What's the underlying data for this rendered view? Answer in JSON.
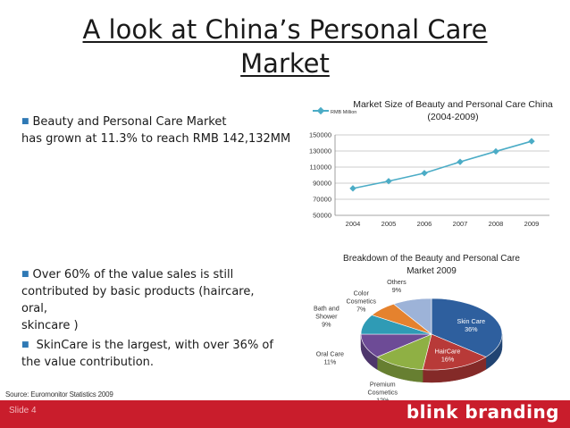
{
  "slide": {
    "title_line1": "A look at China’s Personal Care",
    "title_line2": "Market",
    "bullets": [
      {
        "line1": "Beauty and Personal Care Market",
        "line2": "has grown at 11.3% to reach RMB 142,132MM"
      },
      {
        "line1": "Over 60% of the value sales is still",
        "line2": "contributed by basic products (haircare, oral,",
        "line3": "skincare )"
      },
      {
        "line1": " SkinCare is the largest, with over 36% of",
        "line2": "the value contribution."
      }
    ],
    "source": "Source: Euromonitor Statistics 2009",
    "slide_number": "Slide 4",
    "brand": "blink branding",
    "colors": {
      "accent": "#c91d2c",
      "bullet": "#2f79b5"
    }
  },
  "chart_data": [
    {
      "type": "line",
      "title_line1": "Market Size of Beauty and Personal Care China",
      "title_line2": "(2004-2009)",
      "legend": "top-left",
      "x": [
        "2004",
        "2005",
        "2006",
        "2007",
        "2008",
        "2009"
      ],
      "series": [
        {
          "name": "RMB Million",
          "values": [
            83500,
            92500,
            102500,
            116500,
            129500,
            142132
          ],
          "color": "#4bacc6"
        }
      ],
      "ylim": [
        50000,
        150000
      ],
      "yticks": [
        50000,
        70000,
        90000,
        110000,
        130000,
        150000
      ],
      "ytick_labels": [
        "50000",
        "70000",
        "90000",
        "110000",
        "130000",
        "150000"
      ],
      "grid": true
    },
    {
      "type": "pie",
      "title_line1": "Breakdown of the Beauty and Personal Care",
      "title_line2": "Market 2009",
      "slices": [
        {
          "name": "Skin Care",
          "value": 36,
          "label_lines": [
            "Skin Care",
            "36%"
          ],
          "color": "#2e5f9e"
        },
        {
          "name": "HairCare",
          "value": 16,
          "label_lines": [
            "HairCare",
            "16%"
          ],
          "color": "#b83a38"
        },
        {
          "name": "Premium Cosmetics",
          "value": 12,
          "label_lines": [
            "Premium",
            "Cosmetics",
            "12%"
          ],
          "color": "#8fb044"
        },
        {
          "name": "Oral Care",
          "value": 11,
          "label_lines": [
            "Oral Care",
            "11%"
          ],
          "color": "#6d4b96"
        },
        {
          "name": "Bath and Shower",
          "value": 9,
          "label_lines": [
            "Bath and",
            "Shower",
            "9%"
          ],
          "color": "#2f9bb5"
        },
        {
          "name": "Color Cosmetics",
          "value": 7,
          "label_lines": [
            "Color",
            "Cosmetics",
            "7%"
          ],
          "color": "#e5822e"
        },
        {
          "name": "Others",
          "value": 9,
          "label_lines": [
            "Others",
            "9%"
          ],
          "color": "#9db3d8"
        }
      ]
    }
  ]
}
